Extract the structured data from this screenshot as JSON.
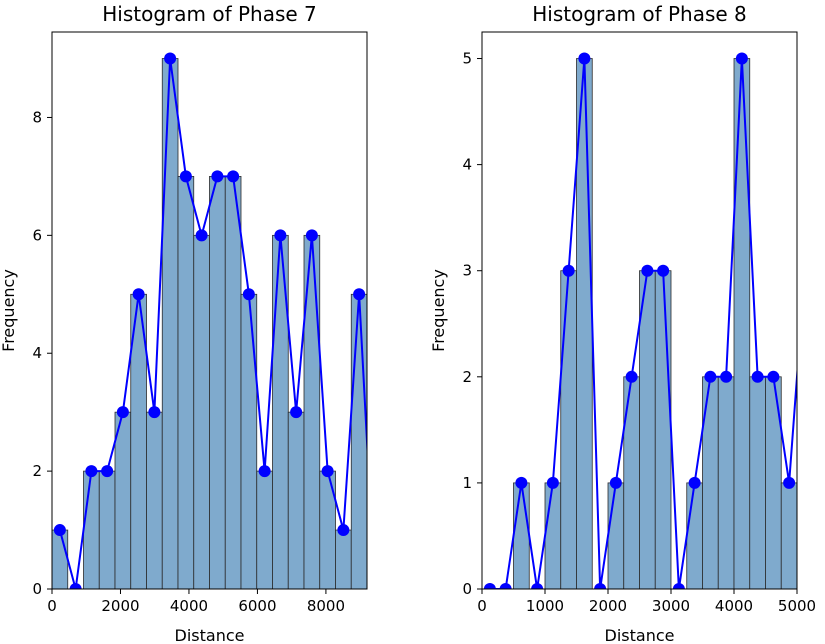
{
  "chart_data": [
    {
      "type": "bar",
      "title": "Histogram of Phase 7",
      "xlabel": "Distance",
      "ylabel": "Frequency",
      "xlim": [
        0,
        9200
      ],
      "ylim": [
        0,
        9.45
      ],
      "xticks": [
        0,
        2000,
        4000,
        6000,
        8000
      ],
      "yticks": [
        0,
        2,
        4,
        6,
        8
      ],
      "bin_edges": [
        0,
        460,
        920,
        1380,
        1840,
        2300,
        2760,
        3220,
        3680,
        4140,
        4600,
        5060,
        5520,
        5980,
        6440,
        6900,
        7360,
        7820,
        8280,
        8740,
        9200
      ],
      "counts": [
        1,
        0,
        2,
        2,
        3,
        5,
        3,
        9,
        7,
        6,
        7,
        7,
        5,
        2,
        6,
        3,
        6,
        2,
        1,
        5
      ],
      "line": {
        "x": [
          230,
          690,
          1150,
          1610,
          2070,
          2530,
          2990,
          3450,
          3910,
          4370,
          4830,
          5290,
          5750,
          6210,
          6670,
          7130,
          7590,
          8050,
          8510,
          8970,
          9430
        ],
        "y": [
          1,
          0,
          2,
          2,
          3,
          5,
          3,
          9,
          7,
          6,
          7,
          7,
          5,
          2,
          6,
          3,
          6,
          2,
          1,
          5,
          0
        ]
      },
      "bar_color": "#7faacd",
      "line_color": "#0000ff"
    },
    {
      "type": "bar",
      "title": "Histogram of Phase 8",
      "xlabel": "Distance",
      "ylabel": "Frequency",
      "xlim": [
        0,
        5000
      ],
      "ylim": [
        0,
        5.25
      ],
      "xticks": [
        0,
        1000,
        2000,
        3000,
        4000,
        5000
      ],
      "yticks": [
        0,
        1,
        2,
        3,
        4,
        5
      ],
      "bin_edges": [
        0,
        250,
        500,
        750,
        1000,
        1250,
        1500,
        1750,
        2000,
        2250,
        2500,
        2750,
        3000,
        3250,
        3500,
        3750,
        4000,
        4250,
        4500,
        4750,
        5000
      ],
      "counts": [
        0,
        0,
        1,
        0,
        1,
        3,
        5,
        0,
        1,
        2,
        3,
        3,
        0,
        1,
        2,
        2,
        5,
        2,
        2,
        1
      ],
      "line": {
        "x": [
          125,
          375,
          625,
          875,
          1125,
          1375,
          1625,
          1875,
          2125,
          2375,
          2625,
          2875,
          3125,
          3375,
          3625,
          3875,
          4125,
          4375,
          4625,
          4875,
          5125
        ],
        "y": [
          0,
          0,
          1,
          0,
          1,
          3,
          5,
          0,
          1,
          2,
          3,
          3,
          0,
          1,
          2,
          2,
          5,
          2,
          2,
          1,
          3
        ]
      },
      "bar_color": "#7faacd",
      "line_color": "#0000ff"
    }
  ]
}
